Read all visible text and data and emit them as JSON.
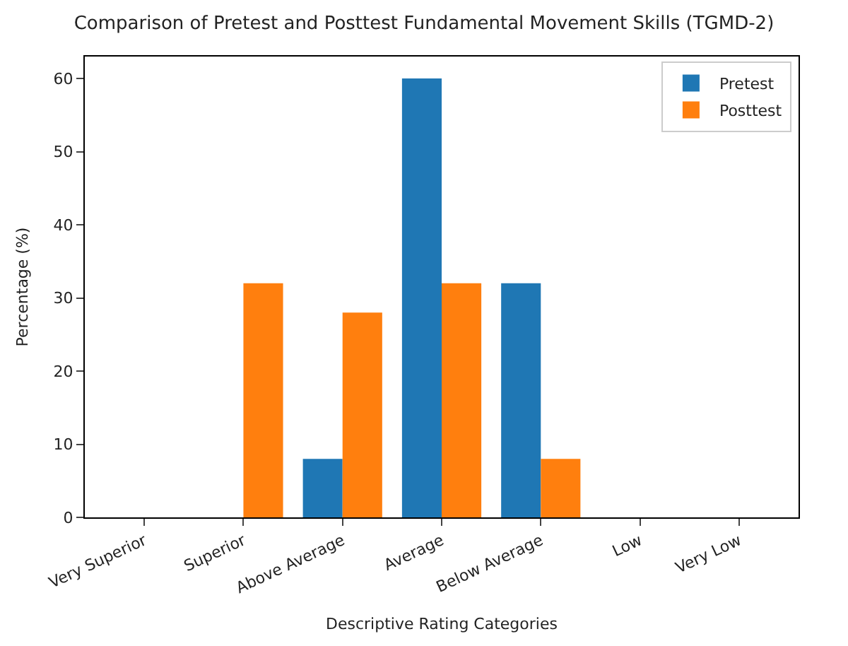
{
  "chart_data": {
    "type": "bar",
    "title": "Comparison of Pretest and Posttest Fundamental Movement Skills (TGMD-2)",
    "xlabel": "Descriptive Rating Categories",
    "ylabel": "Percentage (%)",
    "categories": [
      "Very Superior",
      "Superior",
      "Above Average",
      "Average",
      "Below Average",
      "Low",
      "Very Low"
    ],
    "series": [
      {
        "name": "Pretest",
        "color": "#1f77b4",
        "values": [
          0,
          0,
          8,
          60,
          32,
          0,
          0
        ]
      },
      {
        "name": "Posttest",
        "color": "#ff7f0e",
        "values": [
          0,
          32,
          28,
          32,
          8,
          0,
          0
        ]
      }
    ],
    "ylim": [
      0,
      63
    ],
    "yticks": [
      0,
      10,
      20,
      30,
      40,
      50,
      60
    ],
    "legend": "top right"
  }
}
